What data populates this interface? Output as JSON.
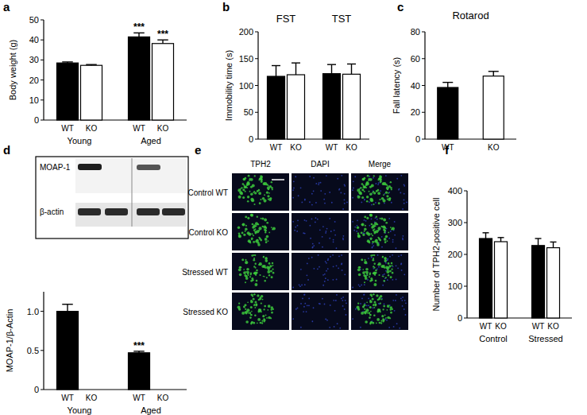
{
  "chart_data": [
    {
      "label": "a",
      "type": "bar",
      "y_label": "Body weight (g)",
      "categories": [
        "Young",
        "Aged"
      ],
      "series": [
        {
          "name": "WT",
          "color": "#000000",
          "values": [
            28.5,
            41.5
          ],
          "errors": [
            0.5,
            2.0
          ]
        },
        {
          "name": "KO",
          "color": "#ffffff",
          "values": [
            27.3,
            38.2
          ],
          "errors": [
            0.4,
            1.8
          ]
        }
      ],
      "ylim": [
        0,
        50
      ],
      "yticks": [
        0,
        10,
        20,
        30,
        40,
        50
      ],
      "annotations": [
        {
          "text": "***",
          "series": 0,
          "category": 1
        },
        {
          "text": "***",
          "series": 1,
          "category": 1
        }
      ]
    },
    {
      "label": "b",
      "type": "bar",
      "y_label": "Immobility time (s)",
      "categories": [
        "FST",
        "TST"
      ],
      "series": [
        {
          "name": "WT",
          "color": "#000000",
          "values": [
            117,
            122
          ],
          "errors": [
            20,
            17
          ]
        },
        {
          "name": "KO",
          "color": "#ffffff",
          "values": [
            120,
            121
          ],
          "errors": [
            22,
            19
          ]
        }
      ],
      "ylim": [
        0,
        200
      ],
      "yticks": [
        0,
        50,
        100,
        150,
        200
      ]
    },
    {
      "label": "c",
      "type": "bar",
      "title": "Rotarod",
      "y_label": "Fall latency (s)",
      "categories": [
        "WT",
        "KO"
      ],
      "values": [
        38.5,
        47
      ],
      "errors": [
        3.8,
        3.5
      ],
      "colors": [
        "#000000",
        "#ffffff"
      ],
      "ylim": [
        0,
        80
      ],
      "yticks": [
        0,
        20,
        40,
        60,
        80
      ]
    },
    {
      "label": "d",
      "type": "bar",
      "blot_labels": [
        "MOAP-1",
        "β-actin"
      ],
      "y_label": "MOAP-1/β-Actin",
      "categories": [
        "Young",
        "Aged"
      ],
      "series": [
        {
          "name": "WT",
          "color": "#000000",
          "values": [
            1.0,
            0.47
          ],
          "errors": [
            0.09,
            0.02
          ]
        },
        {
          "name": "KO",
          "color": "#ffffff",
          "values": [
            0,
            0
          ]
        }
      ],
      "ylim": [
        0,
        1.25
      ],
      "yticks": [
        0,
        0.5,
        {
          "value": 1,
          "label": "1.0"
        }
      ],
      "annotations": [
        {
          "text": "***",
          "series": 0,
          "category": 1
        }
      ]
    },
    {
      "label": "f",
      "type": "bar",
      "y_label": "Number of TPH2-positive cell",
      "categories": [
        "Control",
        "Stressed"
      ],
      "series": [
        {
          "name": "WT",
          "color": "#000000",
          "values": [
            250,
            228
          ],
          "errors": [
            18,
            22
          ]
        },
        {
          "name": "KO",
          "color": "#ffffff",
          "values": [
            240,
            221
          ],
          "errors": [
            13,
            18
          ]
        }
      ],
      "ylim": [
        0,
        400
      ],
      "yticks": [
        0,
        100,
        200,
        300,
        400
      ]
    }
  ],
  "image_panel": {
    "label": "e",
    "columns": [
      "TPH2",
      "DAPI",
      "Merge"
    ],
    "rows": [
      "Control WT",
      "Control KO",
      "Stressed WT",
      "Stressed KO"
    ]
  }
}
